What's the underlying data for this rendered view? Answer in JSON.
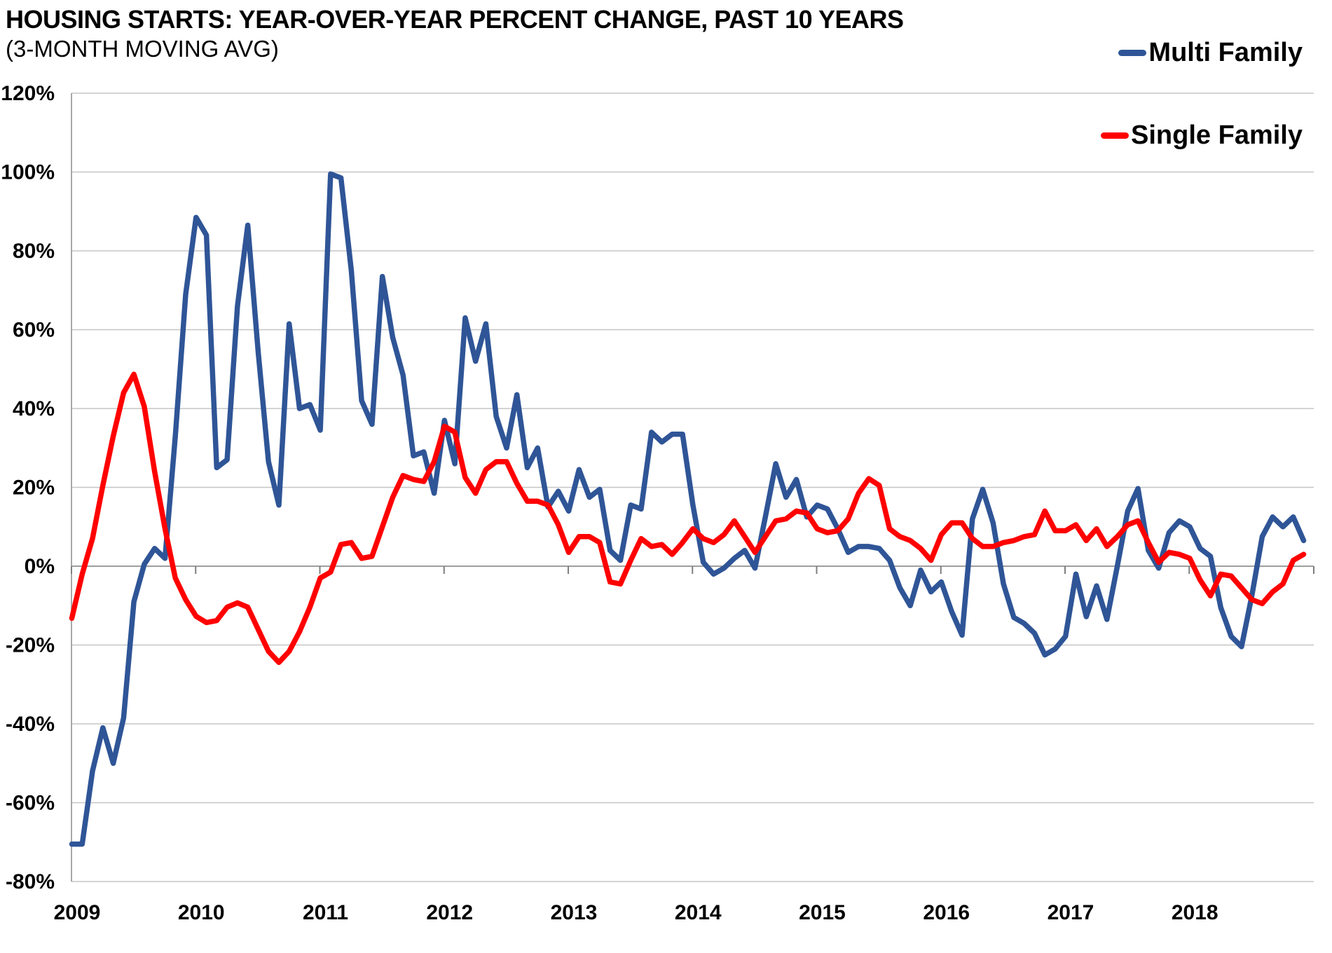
{
  "header": {
    "title": "HOUSING STARTS: YEAR-OVER-YEAR PERCENT CHANGE, PAST 10 YEARS",
    "subtitle": "(3-MONTH MOVING AVG)"
  },
  "legend": {
    "items": [
      {
        "label": "Multi Family",
        "color": "#2F5597"
      },
      {
        "label": "Single Family",
        "color": "#FF0000"
      }
    ],
    "position": "top-right"
  },
  "colors": {
    "background": "#FFFFFF",
    "gridline": "#C6C6C6",
    "axis": "#9E9E9E",
    "tick": "#7F7F7F",
    "text": "#000000"
  },
  "chart_data": {
    "type": "line",
    "title": "HOUSING STARTS: YEAR-OVER-YEAR PERCENT CHANGE, PAST 10 YEARS (3-MONTH MOVING AVG)",
    "xlabel": "",
    "ylabel": "",
    "x_unit": "month",
    "x_start": "2009-01",
    "x_end": "2018-12",
    "x_tick_labels": [
      "2009",
      "2010",
      "2011",
      "2012",
      "2013",
      "2014",
      "2015",
      "2016",
      "2017",
      "2018"
    ],
    "y_tick_labels": [
      "120%",
      "100%",
      "80%",
      "60%",
      "40%",
      "20%",
      "0%",
      "-20%",
      "-40%",
      "-60%",
      "-80%"
    ],
    "ylim": [
      -80,
      120
    ],
    "ytick_step": 20,
    "grid": true,
    "legend_position": "top-right",
    "series": [
      {
        "name": "Multi Family",
        "color": "#2F5597",
        "values": [
          -70.5,
          -70.5,
          -52,
          -41,
          -50,
          -38.5,
          -9,
          0.5,
          4.5,
          2,
          33,
          69,
          88.5,
          84,
          25,
          27,
          66,
          86.5,
          54.5,
          26.5,
          15.5,
          61.5,
          40,
          41,
          34.5,
          99.5,
          98.5,
          75,
          42,
          36,
          73.5,
          58,
          48.5,
          28,
          29,
          18.5,
          37,
          26,
          63,
          52,
          61.5,
          38,
          30,
          43.5,
          25,
          30,
          15,
          19,
          14,
          24.5,
          17.5,
          19.5,
          4,
          1.5,
          15.5,
          14.5,
          34,
          31.5,
          33.5,
          33.5,
          15.5,
          1,
          -2,
          -0.5,
          2,
          4,
          -0.5,
          12.5,
          26,
          17.5,
          22,
          12.5,
          15.5,
          14.5,
          9.5,
          3.5,
          5,
          5,
          4.5,
          1.5,
          -5.5,
          -10,
          -1,
          -6.5,
          -4,
          -11.5,
          -17.5,
          12,
          19.5,
          11,
          -4.5,
          -13,
          -14.5,
          -17,
          -22.5,
          -21,
          -17.8,
          -2,
          -12.8,
          -5,
          -13.5,
          0,
          14,
          19.7,
          4,
          -0.5,
          8.5,
          11.5,
          10,
          4.5,
          2.5,
          -10.5,
          -17.8,
          -20.4,
          -7.5,
          7.5,
          12.5,
          10,
          12.5,
          6.5
        ]
      },
      {
        "name": "Single Family",
        "color": "#FF0000",
        "values": [
          -13.2,
          -2,
          7,
          20.5,
          33,
          44,
          48.7,
          40.5,
          24,
          9.5,
          -3,
          -8.5,
          -12.7,
          -14.3,
          -13.8,
          -10.4,
          -9.3,
          -10.4,
          -16,
          -21.6,
          -24.4,
          -21.6,
          -16.6,
          -10.4,
          -3,
          -1.5,
          5.5,
          6,
          2,
          2.5,
          10,
          17.5,
          23,
          22,
          21.5,
          26.5,
          35.5,
          34,
          22.5,
          18.5,
          24.5,
          26.5,
          26.5,
          21,
          16.5,
          16.5,
          15.5,
          10.5,
          3.5,
          7.5,
          7.5,
          6,
          -4,
          -4.5,
          1.5,
          7,
          5,
          5.5,
          3,
          6,
          9.5,
          7,
          6,
          8,
          11.5,
          7.5,
          3.5,
          7.5,
          11.5,
          12,
          14,
          13.5,
          9.5,
          8.5,
          9,
          12,
          18.5,
          22.2,
          20.5,
          9.5,
          7.5,
          6.5,
          4.5,
          1.5,
          8,
          11,
          11,
          7,
          5,
          5,
          6,
          6.5,
          7.5,
          8,
          14,
          9,
          9,
          10.5,
          6.5,
          9.5,
          5,
          7.5,
          10.5,
          11.5,
          6,
          1,
          3.5,
          3,
          2,
          -3.5,
          -7.5,
          -2,
          -2.5,
          -5.5,
          -8.5,
          -9.5,
          -6.5,
          -4.5,
          1.5,
          3
        ]
      }
    ]
  }
}
